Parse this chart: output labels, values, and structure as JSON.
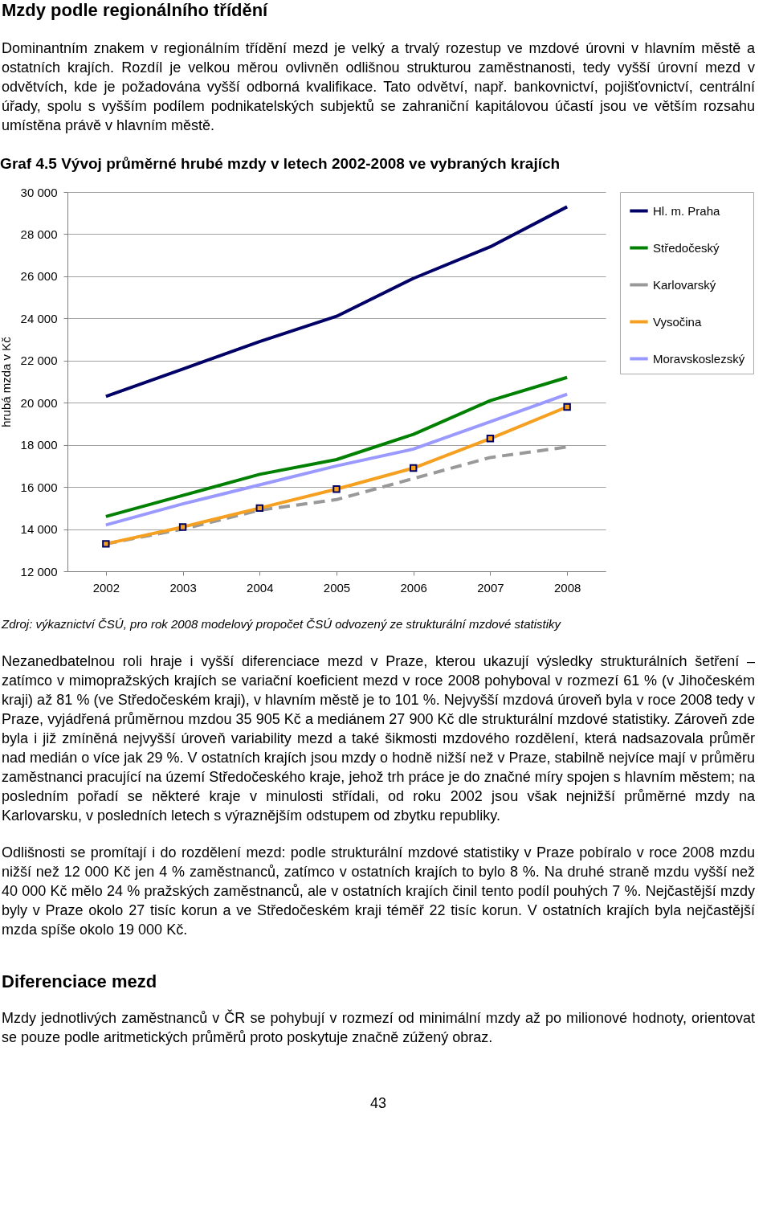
{
  "chart_data": {
    "type": "line",
    "title": "Graf 4.5 Vývoj průměrné hrubé mzdy v letech 2002-2008 ve vybraných krajích",
    "ylabel": "hrubá mzda v Kč",
    "categories": [
      "2002",
      "2003",
      "2004",
      "2005",
      "2006",
      "2007",
      "2008"
    ],
    "series": [
      {
        "name": "Hl. m. Praha",
        "color": "#000066",
        "values": [
          20300,
          21600,
          22900,
          24100,
          25900,
          27400,
          29300
        ]
      },
      {
        "name": "Středočeský",
        "color": "#008000",
        "values": [
          14600,
          15600,
          16600,
          17300,
          18500,
          20100,
          21200
        ]
      },
      {
        "name": "Karlovarský",
        "color": "#999999",
        "line_style": "dashed",
        "values": [
          13300,
          14000,
          14900,
          15400,
          16400,
          17400,
          17900
        ]
      },
      {
        "name": "Vysočina",
        "color": "#f5a020",
        "marker": "square",
        "values": [
          13300,
          14100,
          15000,
          15900,
          16900,
          18300,
          19800
        ]
      },
      {
        "name": "Moravskoslezský",
        "color": "#9999ff",
        "values": [
          14200,
          15200,
          16100,
          17000,
          17800,
          19100,
          20400
        ]
      }
    ],
    "ylim": [
      12000,
      30000
    ],
    "yticks": [
      12000,
      14000,
      16000,
      18000,
      20000,
      22000,
      24000,
      26000,
      28000,
      30000
    ],
    "grid": "y",
    "legend": "right",
    "line_style": "solid",
    "marker": "none",
    "annotations": [
      "Mzdy podle regionálního třídění",
      "Dominantním znakem v regionálním třídění mezd je velký a trvalý rozestup ve mzdové úrovni v hlavním městě a ostatních krajích. Rozdíl je velkou měrou ovlivněn odlišnou strukturou zaměstnanosti, tedy vyšší úrovní mezd v odvětvích, kde je požadována vyšší odborná kvalifikace. Tato odvětví, např. bankovnictví, pojišťovnictví, centrální úřady, spolu s vyšším podílem podnikatelských subjektů se zahraniční kapitálovou účastí jsou ve větším rozsahu umístěna právě v hlavním městě.",
      "Zdroj: výkaznictví ČSÚ, pro rok 2008 modelový propočet ČSÚ odvozený ze strukturální mzdové statistiky",
      "Nezanedbatelnou roli hraje i vyšší diferenciace mezd v Praze, kterou ukazují výsledky strukturálních šetření – zatímco v mimopražských krajích se variační koeficient mezd v roce 2008 pohyboval v rozmezí 61 % (v Jihočeském kraji) až 81 % (ve Středočeském kraji), v hlavním městě je to 101 %. Nejvyšší mzdová úroveň byla v roce 2008 tedy v Praze, vyjádřená průměrnou mzdou 35 905 Kč a mediánem 27 900 Kč dle strukturální mzdové statistiky. Zároveň zde byla i již zmíněná nejvyšší úroveň variability mezd a také šikmosti mzdového rozdělení, která nadsazovala průměr nad medián o více jak 29 %. V ostatních krajích jsou mzdy o hodně nižší než v Praze, stabilně nejvíce mají v průměru zaměstnanci pracující na území Středočeského kraje, jehož trh práce je do značné míry spojen s hlavním městem; na posledním pořadí se některé kraje v minulosti střídali, od roku 2002 jsou však nejnižší průměrné mzdy na Karlovarsku, v posledních letech s výraznějším odstupem od zbytku republiky.",
      "Odlišnosti se promítají i do rozdělení mezd: podle strukturální mzdové statistiky v Praze pobíralo v roce 2008 mzdu nižší než 12 000 Kč jen 4 % zaměstnanců, zatímco v ostatních krajích to bylo 8 %. Na druhé straně mzdu vyšší než 40 000 Kč mělo 24 % pražských zaměstnanců, ale v ostatních krajích činil tento podíl pouhých 7 %. Nejčastější mzdy byly v Praze okolo 27 tisíc korun a ve Středočeském kraji téměř 22 tisíc korun. V ostatních krajích byla nejčastější mzda spíše okolo 19 000 Kč.",
      "Diferenciace mezd",
      "Mzdy jednotlivých zaměstnanců v ČR se pohybují v rozmezí od minimální mzdy až po milionové hodnoty, orientovat se pouze podle aritmetických průměrů proto poskytuje značně zúžený obraz.",
      "43"
    ]
  }
}
